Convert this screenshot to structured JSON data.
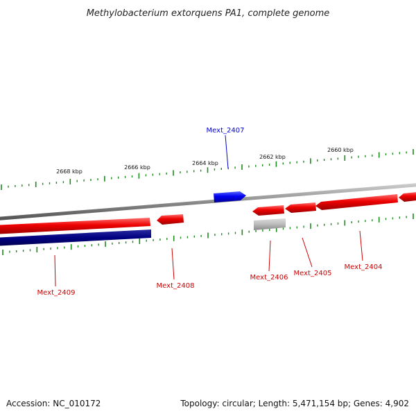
{
  "title": "Methylobacterium extorquens PA1, complete genome",
  "footer": {
    "accession": "Accession: NC_010172",
    "summary": "Topology: circular; Length: 5,471,154 bp; Genes: 4,902"
  },
  "colors": {
    "background": "#ffffff",
    "backbone": "#8c8c8c",
    "tick": "#1a8a1a",
    "forward_gene": "#ee0000",
    "reverse_gene": "#ee0000",
    "highlight_gene": "#0000ee",
    "rna_or_pseudo_gene": "#bbbbbb",
    "cds_track": "#000080",
    "forward_label": "#0000cc",
    "reverse_label": "#cc0000"
  },
  "scale_labels": [
    "2668 kbp",
    "2666 kbp",
    "2664 kbp",
    "2662 kbp",
    "2660 kbp"
  ],
  "genes": [
    {
      "name": "Mext_2407",
      "strand": "forward",
      "color_key": "highlight_gene",
      "label_color_key": "forward_label"
    },
    {
      "name": "Mext_2404",
      "strand": "reverse",
      "color_key": "reverse_gene",
      "label_color_key": "reverse_label"
    },
    {
      "name": "Mext_2405",
      "strand": "reverse",
      "color_key": "reverse_gene",
      "label_color_key": "reverse_label"
    },
    {
      "name": "Mext_2406",
      "strand": "reverse",
      "color_key": "rna_or_pseudo_gene",
      "label_color_key": "reverse_label"
    },
    {
      "name": "Mext_2408",
      "strand": "reverse",
      "color_key": "reverse_gene",
      "label_color_key": "reverse_label"
    },
    {
      "name": "Mext_2409",
      "strand": "reverse",
      "color_key": "reverse_gene",
      "label_color_key": "reverse_label"
    }
  ]
}
